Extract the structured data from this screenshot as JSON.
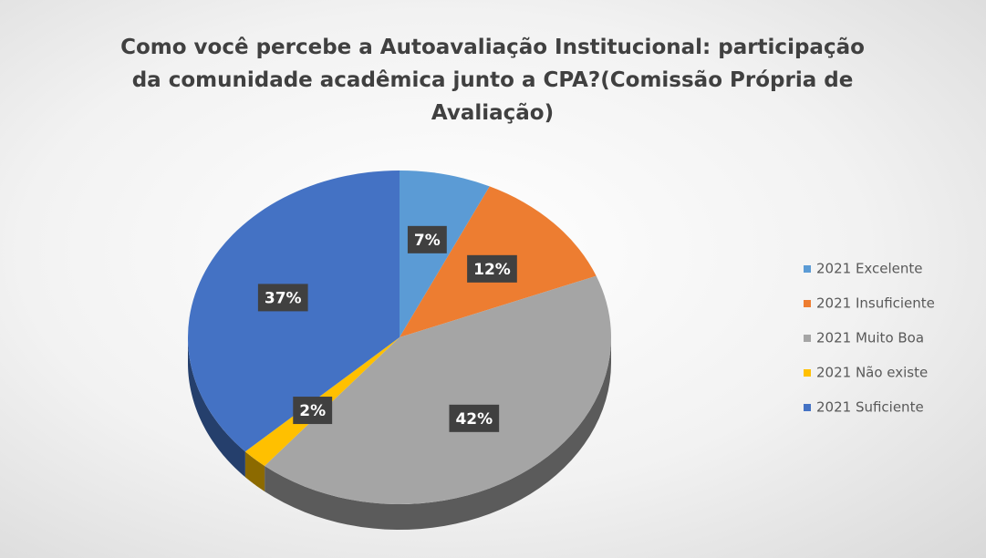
{
  "chart_data": {
    "type": "pie",
    "title": "Como você percebe a Autoavaliação Institucional: participação da comunidade acadêmica junto a CPA?(Comissão Própria de Avaliação)",
    "categories": [
      "2021 Excelente",
      "2021 Insuficiente",
      "2021 Muito Boa",
      "2021 Não existe",
      "2021 Suficiente"
    ],
    "values": [
      7,
      12,
      42,
      2,
      37
    ],
    "value_labels": [
      "7%",
      "12%",
      "42%",
      "2%",
      "37%"
    ],
    "colors": [
      "#5b9bd5",
      "#ed7d31",
      "#a5a5a5",
      "#ffc000",
      "#4472c4"
    ],
    "legend": "right"
  }
}
